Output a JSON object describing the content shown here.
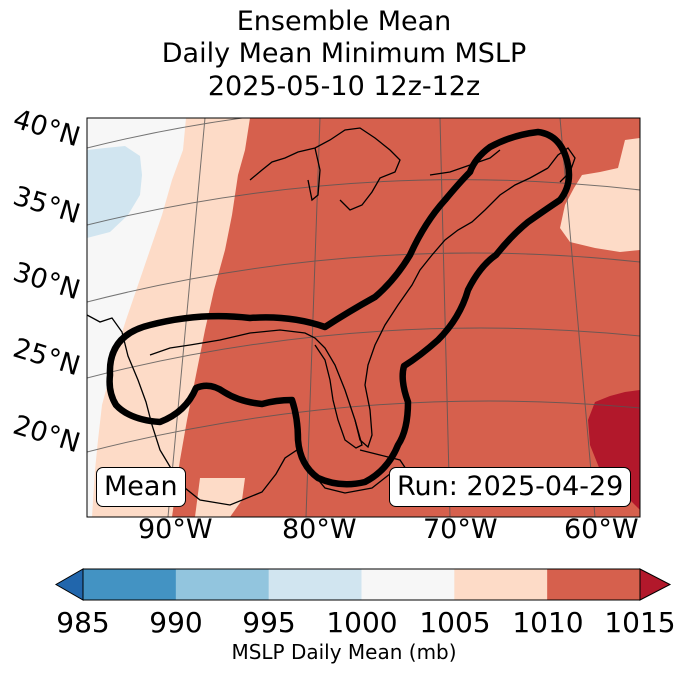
{
  "title": {
    "line1": "Ensemble Mean",
    "line2": "Daily Mean Minimum MSLP",
    "line3": "2025-05-10 12z-12z"
  },
  "map": {
    "lat_labels": [
      "40°N",
      "35°N",
      "30°N",
      "25°N",
      "20°N"
    ],
    "lon_labels": [
      "90°W",
      "80°W",
      "70°W",
      "60°W"
    ],
    "left_box_label": "Mean",
    "right_box_label": "Run: 2025-04-29"
  },
  "colorbar": {
    "ticks": [
      "985",
      "990",
      "995",
      "1000",
      "1005",
      "1010",
      "1015"
    ],
    "colors": [
      "#2166ac",
      "#4393c3",
      "#92c5de",
      "#d1e5f0",
      "#f7f7f7",
      "#fddbc7",
      "#d6604d",
      "#b2182b"
    ],
    "label": "MSLP Daily Mean (mb)"
  }
}
